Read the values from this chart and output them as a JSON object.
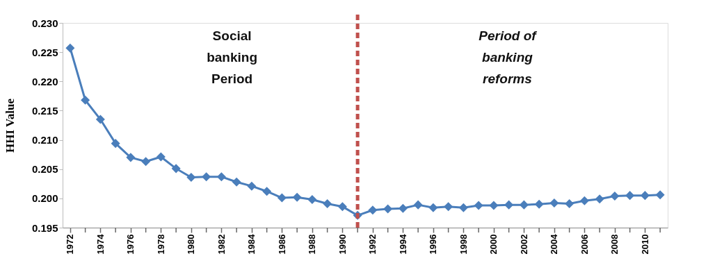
{
  "chart_data": {
    "type": "line",
    "ylabel": "HHI Value",
    "x": [
      1972,
      1973,
      1974,
      1975,
      1976,
      1977,
      1978,
      1979,
      1980,
      1981,
      1982,
      1983,
      1984,
      1985,
      1986,
      1987,
      1988,
      1989,
      1990,
      1991,
      1992,
      1993,
      1994,
      1995,
      1996,
      1997,
      1998,
      1999,
      2000,
      2001,
      2002,
      2003,
      2004,
      2005,
      2006,
      2007,
      2008,
      2009,
      2010,
      2011
    ],
    "series": [
      {
        "color": "#4a7ebb",
        "values": [
          0.2257,
          0.2168,
          0.2135,
          0.2094,
          0.207,
          0.2063,
          0.2071,
          0.2051,
          0.2036,
          0.2037,
          0.2037,
          0.2028,
          0.2021,
          0.2012,
          0.2001,
          0.2002,
          0.1998,
          0.1991,
          0.1986,
          0.1971,
          0.198,
          0.1982,
          0.1983,
          0.1989,
          0.1984,
          0.1986,
          0.1984,
          0.1988,
          0.1988,
          0.1989,
          0.1989,
          0.199,
          0.1992,
          0.1991,
          0.1996,
          0.1999,
          0.2004,
          0.2005,
          0.2005,
          0.2006
        ]
      }
    ],
    "xlim": [
      1971.5,
      2011.5
    ],
    "xticks": [
      1972,
      {
        "value": 1973,
        "label": null
      },
      1974,
      {
        "value": 1975,
        "label": null
      },
      1976,
      {
        "value": 1977,
        "label": null
      },
      1978,
      {
        "value": 1979,
        "label": null
      },
      1980,
      {
        "value": 1981,
        "label": null
      },
      1982,
      {
        "value": 1983,
        "label": null
      },
      1984,
      {
        "value": 1985,
        "label": null
      },
      1986,
      {
        "value": 1987,
        "label": null
      },
      1988,
      {
        "value": 1989,
        "label": null
      },
      1990,
      {
        "value": 1991,
        "label": null
      },
      1992,
      {
        "value": 1993,
        "label": null
      },
      1994,
      {
        "value": 1995,
        "label": null
      },
      1996,
      {
        "value": 1997,
        "label": null
      },
      1998,
      {
        "value": 1999,
        "label": null
      },
      2000,
      {
        "value": 2001,
        "label": null
      },
      2002,
      {
        "value": 2003,
        "label": null
      },
      2004,
      {
        "value": 2005,
        "label": null
      },
      2006,
      {
        "value": 2007,
        "label": null
      },
      2008,
      {
        "value": 2009,
        "label": null
      },
      2010,
      {
        "value": 2011,
        "label": null
      }
    ],
    "ylim": [
      0.195,
      0.23
    ],
    "yticks": [
      {
        "value": 0.195,
        "label": "0.195"
      },
      {
        "value": 0.2,
        "label": "0.200"
      },
      {
        "value": 0.205,
        "label": "0.205"
      },
      {
        "value": 0.21,
        "label": "0.210"
      },
      {
        "value": 0.215,
        "label": "0.215"
      },
      {
        "value": 0.22,
        "label": "0.220"
      },
      {
        "value": 0.225,
        "label": "0.225"
      },
      {
        "value": 0.23,
        "label": "0.230"
      }
    ],
    "ref_lines": [
      {
        "axis": "x",
        "value": 1991,
        "color": "#c0504d",
        "line_style": "dashed"
      }
    ],
    "annotations": [
      "Social\nbanking\nPeriod",
      "Period  of\nbanking\nreforms"
    ],
    "marker": "diamond",
    "line_style": "solid",
    "grid": false
  }
}
